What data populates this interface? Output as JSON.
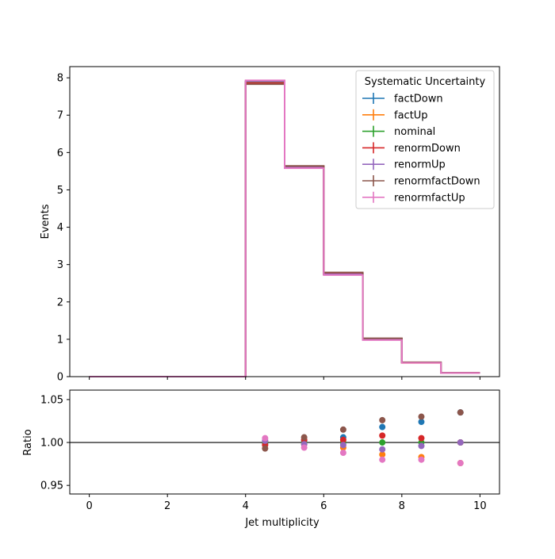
{
  "chart_data": [
    {
      "type": "step",
      "xlabel": "",
      "ylabel": "Events",
      "xlim": [
        -0.5,
        10.5
      ],
      "ylim": [
        0,
        8.3
      ],
      "xticks": [
        0,
        2,
        4,
        6,
        8,
        10
      ],
      "yticks": [
        0,
        1,
        2,
        3,
        4,
        5,
        6,
        7,
        8
      ],
      "bin_edges": [
        0,
        1,
        2,
        3,
        4,
        5,
        6,
        7,
        8,
        9,
        10
      ],
      "legend": {
        "title": "Systematic Uncertainty",
        "position": "top-right"
      },
      "series": [
        {
          "name": "factDown",
          "color": "#1f77b4",
          "values": [
            0,
            0,
            0,
            0,
            7.88,
            5.62,
            2.77,
            1.02,
            0.38,
            0.104
          ]
        },
        {
          "name": "factUp",
          "color": "#ff7f0e",
          "values": [
            0,
            0,
            0,
            0,
            7.9,
            5.61,
            2.74,
            0.99,
            0.37,
            0.098
          ]
        },
        {
          "name": "nominal",
          "color": "#2ca02c",
          "values": [
            0,
            0,
            0,
            0,
            7.89,
            5.61,
            2.75,
            1.0,
            0.375,
            0.1
          ]
        },
        {
          "name": "renormDown",
          "color": "#d62728",
          "values": [
            0,
            0,
            0,
            0,
            7.86,
            5.63,
            2.76,
            1.01,
            0.377,
            0.1
          ]
        },
        {
          "name": "renormUp",
          "color": "#9467bd",
          "values": [
            0,
            0,
            0,
            0,
            7.91,
            5.6,
            2.74,
            0.993,
            0.374,
            0.1
          ]
        },
        {
          "name": "renormfactDown",
          "color": "#8c564b",
          "values": [
            0,
            0,
            0,
            0,
            7.83,
            5.64,
            2.79,
            1.026,
            0.386,
            0.1035
          ]
        },
        {
          "name": "renormfactUp",
          "color": "#e377c2",
          "values": [
            0,
            0,
            0,
            0,
            7.93,
            5.58,
            2.72,
            0.98,
            0.368,
            0.0975
          ]
        }
      ]
    },
    {
      "type": "scatter",
      "xlabel": "Jet multiplicity",
      "ylabel": "Ratio",
      "xlim": [
        -0.5,
        10.5
      ],
      "ylim": [
        0.94,
        1.061
      ],
      "xticks": [
        0,
        2,
        4,
        6,
        8,
        10
      ],
      "yticks": [
        0.95,
        1.0,
        1.05
      ],
      "ytick_labels": [
        "0.95",
        "1.00",
        "1.05"
      ],
      "reference_line": 1.0,
      "x": [
        4.5,
        5.5,
        6.5,
        7.5,
        8.5,
        9.5
      ],
      "series": [
        {
          "name": "factDown",
          "color": "#1f77b4",
          "values": [
            0.999,
            1.002,
            1.006,
            1.018,
            1.024,
            1.035
          ]
        },
        {
          "name": "factUp",
          "color": "#ff7f0e",
          "values": [
            1.001,
            0.998,
            0.994,
            0.986,
            0.983,
            0.976
          ]
        },
        {
          "name": "nominal",
          "color": "#2ca02c",
          "values": [
            1.0,
            1.0,
            1.0,
            1.0,
            1.0,
            1.0
          ]
        },
        {
          "name": "renormDown",
          "color": "#d62728",
          "values": [
            0.997,
            1.003,
            1.003,
            1.008,
            1.005,
            1.0
          ]
        },
        {
          "name": "renormUp",
          "color": "#9467bd",
          "values": [
            1.002,
            0.998,
            0.997,
            0.992,
            0.996,
            1.0
          ]
        },
        {
          "name": "renormfactDown",
          "color": "#8c564b",
          "values": [
            0.993,
            1.006,
            1.015,
            1.026,
            1.03,
            1.035
          ]
        },
        {
          "name": "renormfactUp",
          "color": "#e377c2",
          "values": [
            1.005,
            0.994,
            0.988,
            0.98,
            0.98,
            0.976
          ]
        }
      ]
    }
  ]
}
